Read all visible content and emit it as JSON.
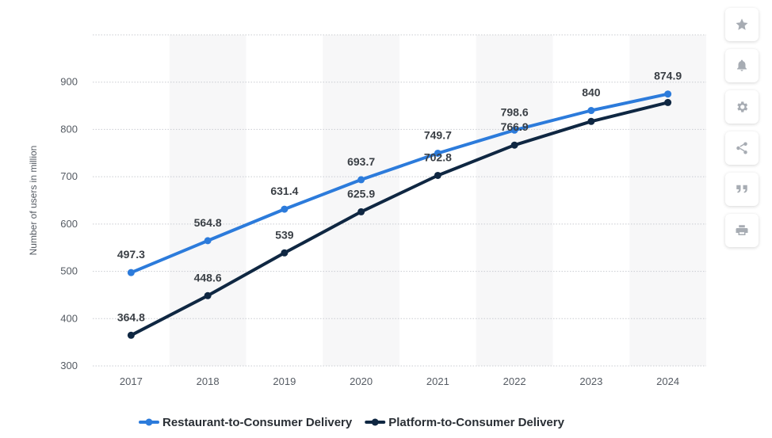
{
  "chart_data": {
    "type": "line",
    "x": [
      "2017",
      "2018",
      "2019",
      "2020",
      "2021",
      "2022",
      "2023",
      "2024"
    ],
    "series": [
      {
        "name": "Restaurant-to-Consumer Delivery",
        "color": "#2c7bdb",
        "values": [
          497.3,
          564.8,
          631.4,
          693.7,
          749.7,
          798.6,
          840,
          874.9
        ],
        "labels": [
          "497.3",
          "564.8",
          "631.4",
          "693.7",
          "749.7",
          "798.6",
          "840",
          "874.9"
        ]
      },
      {
        "name": "Platform-to-Consumer Delivery",
        "color": "#0f2742",
        "values": [
          364.8,
          448.6,
          539,
          625.9,
          702.8,
          766.9,
          817,
          857
        ],
        "labels": [
          "364.8",
          "448.6",
          "539",
          "625.9",
          "702.8",
          "766.9",
          "",
          ""
        ]
      }
    ],
    "yticks": [
      "300",
      "400",
      "500",
      "600",
      "700",
      "800",
      "900"
    ],
    "ylim": [
      300,
      1000
    ],
    "ylabel": "Number of users in million",
    "grid": true,
    "legend_position": "bottom"
  },
  "toolbar": [
    {
      "name": "star-icon"
    },
    {
      "name": "bell-icon"
    },
    {
      "name": "gear-icon"
    },
    {
      "name": "share-icon"
    },
    {
      "name": "quote-icon"
    },
    {
      "name": "print-icon"
    }
  ]
}
